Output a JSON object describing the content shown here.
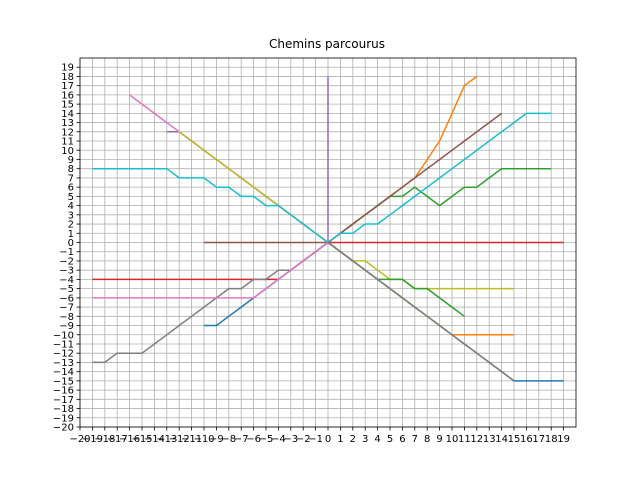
{
  "chart_data": {
    "type": "line",
    "title": "Chemins parcourus",
    "xlabel": "",
    "ylabel": "",
    "xlim": [
      -20,
      20
    ],
    "ylim": [
      -20,
      20
    ],
    "grid": true,
    "xticks": [
      -20,
      -19,
      -18,
      -17,
      -16,
      -15,
      -14,
      -13,
      -12,
      -11,
      -10,
      -9,
      -8,
      -7,
      -6,
      -5,
      -4,
      -3,
      -2,
      -1,
      0,
      1,
      2,
      3,
      4,
      5,
      6,
      7,
      8,
      9,
      10,
      11,
      12,
      13,
      14,
      15,
      16,
      17,
      18,
      19
    ],
    "xtick_labels": [
      "−20",
      "−19",
      "−18",
      "−17",
      "−16",
      "−15",
      "−14",
      "−13",
      "−12",
      "−11",
      "−10",
      "−9",
      "−8",
      "−7",
      "−6",
      "−5",
      "−4",
      "−3",
      "−2",
      "−1",
      "0",
      "1",
      "2",
      "3",
      "4",
      "5",
      "6",
      "7",
      "8",
      "9",
      "10",
      "11",
      "12",
      "13",
      "14",
      "15",
      "16",
      "17",
      "18",
      "19"
    ],
    "yticks": [
      -20,
      -19,
      -18,
      -17,
      -16,
      -15,
      -14,
      -13,
      -12,
      -11,
      -10,
      -9,
      -8,
      -7,
      -6,
      -5,
      -4,
      -3,
      -2,
      -1,
      0,
      1,
      2,
      3,
      4,
      5,
      6,
      7,
      8,
      9,
      10,
      11,
      12,
      13,
      14,
      15,
      16,
      17,
      18,
      19
    ],
    "ytick_labels": [
      "−20",
      "−19",
      "−18",
      "−17",
      "−16",
      "−15",
      "−14",
      "−13",
      "−12",
      "−11",
      "−10",
      "−9",
      "−8",
      "−7",
      "−6",
      "−5",
      "−4",
      "−3",
      "−2",
      "−1",
      "0",
      "1",
      "2",
      "3",
      "4",
      "5",
      "6",
      "7",
      "8",
      "9",
      "10",
      "11",
      "12",
      "13",
      "14",
      "15",
      "16",
      "17",
      "18",
      "19"
    ],
    "series": [
      {
        "color": "#1f77b4",
        "x": [
          0,
          1,
          2,
          3,
          4,
          5,
          6,
          7,
          8,
          9,
          10,
          11,
          12,
          13,
          14,
          15,
          16,
          17,
          18,
          19
        ],
        "y": [
          0,
          -1,
          -2,
          -3,
          -4,
          -5,
          -6,
          -7,
          -8,
          -9,
          -10,
          -11,
          -12,
          -13,
          -14,
          -15,
          -15,
          -15,
          -15,
          -15
        ]
      },
      {
        "color": "#ff7f0e",
        "x": [
          0,
          1,
          2,
          3,
          4,
          5,
          6,
          7,
          8,
          9,
          10,
          11,
          12
        ],
        "y": [
          0,
          1,
          2,
          3,
          4,
          5,
          6,
          7,
          9,
          11,
          14,
          17,
          18
        ]
      },
      {
        "color": "#2ca02c",
        "x": [
          0,
          1,
          2,
          3,
          4,
          5,
          6,
          7,
          8,
          9,
          10,
          11,
          12,
          13,
          14,
          15,
          16,
          17,
          18
        ],
        "y": [
          0,
          1,
          2,
          3,
          4,
          5,
          5,
          6,
          5,
          4,
          5,
          6,
          6,
          7,
          8,
          8,
          8,
          8,
          8
        ]
      },
      {
        "color": "#d62728",
        "x": [
          0,
          -1,
          -2,
          -3,
          -4,
          -5,
          -6,
          -7,
          -8,
          -9,
          -10,
          -11,
          -12,
          -13,
          -14,
          -15,
          -16,
          -17,
          -18,
          -19
        ],
        "y": [
          0,
          -1,
          -2,
          -3,
          -4,
          -4,
          -4,
          -4,
          -4,
          -4,
          -4,
          -4,
          -4,
          -4,
          -4,
          -4,
          -4,
          -4,
          -4,
          -4
        ]
      },
      {
        "color": "#9467bd",
        "x": [
          0,
          -1,
          -2,
          -3,
          -4,
          -5,
          -6,
          -7,
          -8,
          -9,
          -10,
          -11,
          -12,
          -13
        ],
        "y": [
          0,
          1,
          2,
          3,
          4,
          5,
          6,
          7,
          8,
          9,
          10,
          11,
          12,
          12
        ]
      },
      {
        "color": "#8c564b",
        "x": [
          0,
          1,
          2,
          3,
          4,
          5,
          6,
          7,
          8,
          9,
          10,
          11,
          12,
          13,
          14
        ],
        "y": [
          0,
          1,
          2,
          3,
          4,
          5,
          6,
          7,
          8,
          9,
          10,
          11,
          12,
          13,
          14
        ]
      },
      {
        "color": "#e377c2",
        "x": [
          0,
          -1,
          -2,
          -3,
          -4,
          -5,
          -6,
          -7,
          -8,
          -9,
          -10,
          -11,
          -12,
          -13,
          -14,
          -15,
          -16
        ],
        "y": [
          0,
          1,
          2,
          3,
          4,
          5,
          6,
          7,
          8,
          9,
          10,
          11,
          12,
          13,
          14,
          15,
          16
        ]
      },
      {
        "color": "#7f7f7f",
        "x": [
          0,
          -1,
          -2,
          -3,
          -4,
          -5,
          -6,
          -7,
          -8,
          -9,
          -10,
          -11,
          -12,
          -13,
          -14,
          -15,
          -16,
          -17,
          -18,
          -19
        ],
        "y": [
          0,
          -1,
          -2,
          -3,
          -3,
          -4,
          -4,
          -5,
          -5,
          -6,
          -7,
          -8,
          -9,
          -10,
          -11,
          -12,
          -12,
          -12,
          -13,
          -13
        ]
      },
      {
        "color": "#bcbd22",
        "x": [
          0,
          1,
          2,
          3,
          4,
          5,
          6,
          7,
          8,
          9,
          10,
          11,
          12,
          13,
          14,
          15
        ],
        "y": [
          0,
          -1,
          -2,
          -2,
          -3,
          -4,
          -4,
          -5,
          -5,
          -5,
          -5,
          -5,
          -5,
          -5,
          -5,
          -5
        ]
      },
      {
        "color": "#17becf",
        "x": [
          0,
          1,
          2,
          3,
          4,
          5,
          6,
          7,
          8,
          9,
          10,
          11,
          12,
          13,
          14,
          15,
          16,
          17,
          18
        ],
        "y": [
          0,
          1,
          1,
          2,
          2,
          3,
          4,
          5,
          6,
          7,
          8,
          9,
          10,
          11,
          12,
          13,
          14,
          14,
          14
        ]
      },
      {
        "color": "#1f77b4",
        "x": [
          0,
          -1,
          -2,
          -3,
          -4,
          -5,
          -6,
          -7,
          -8,
          -9,
          -10
        ],
        "y": [
          0,
          -1,
          -2,
          -3,
          -4,
          -5,
          -6,
          -7,
          -8,
          -9,
          -9
        ]
      },
      {
        "color": "#ff7f0e",
        "x": [
          0,
          1,
          2,
          3,
          4,
          5,
          6,
          7,
          8,
          9,
          10,
          11,
          12,
          13,
          14,
          15
        ],
        "y": [
          0,
          -1,
          -2,
          -3,
          -4,
          -5,
          -6,
          -7,
          -8,
          -9,
          -10,
          -10,
          -10,
          -10,
          -10,
          -10
        ]
      },
      {
        "color": "#2ca02c",
        "x": [
          0,
          1,
          2,
          3,
          4,
          5,
          6,
          7,
          8,
          9,
          10,
          11
        ],
        "y": [
          0,
          -1,
          -2,
          -3,
          -4,
          -4,
          -4,
          -5,
          -5,
          -6,
          -7,
          -8
        ]
      },
      {
        "color": "#d62728",
        "x": [
          0,
          1,
          2,
          3,
          4,
          5,
          6,
          7,
          8,
          9,
          10,
          11,
          12,
          13,
          14,
          15,
          16,
          17,
          18,
          19
        ],
        "y": [
          0,
          0,
          0,
          0,
          0,
          0,
          0,
          0,
          0,
          0,
          0,
          0,
          0,
          0,
          0,
          0,
          0,
          0,
          0,
          0
        ]
      },
      {
        "color": "#9467bd",
        "x": [
          0,
          0,
          0,
          0,
          0,
          0,
          0,
          0,
          0,
          0,
          0,
          0,
          0,
          0,
          0,
          0,
          0,
          0,
          0
        ],
        "y": [
          0,
          1,
          2,
          3,
          4,
          5,
          6,
          7,
          8,
          9,
          10,
          11,
          12,
          13,
          14,
          15,
          16,
          17,
          18
        ]
      },
      {
        "color": "#8c564b",
        "x": [
          0,
          -1,
          -2,
          -3,
          -4,
          -5,
          -6,
          -7,
          -8,
          -9,
          -10
        ],
        "y": [
          0,
          0,
          0,
          0,
          0,
          0,
          0,
          0,
          0,
          0,
          0
        ]
      },
      {
        "color": "#e377c2",
        "x": [
          0,
          -1,
          -2,
          -3,
          -4,
          -5,
          -6,
          -7,
          -8,
          -9,
          -10,
          -11,
          -12,
          -13,
          -14,
          -15,
          -16,
          -17,
          -18,
          -19
        ],
        "y": [
          0,
          -1,
          -2,
          -3,
          -4,
          -5,
          -6,
          -6,
          -6,
          -6,
          -6,
          -6,
          -6,
          -6,
          -6,
          -6,
          -6,
          -6,
          -6,
          -6
        ]
      },
      {
        "color": "#7f7f7f",
        "x": [
          0,
          1,
          2,
          3,
          4,
          5,
          6,
          7,
          8,
          9,
          10,
          11,
          12,
          13,
          14,
          15
        ],
        "y": [
          0,
          -1,
          -2,
          -3,
          -4,
          -5,
          -6,
          -7,
          -8,
          -9,
          -10,
          -11,
          -12,
          -13,
          -14,
          -15
        ]
      },
      {
        "color": "#bcbd22",
        "x": [
          0,
          -1,
          -2,
          -3,
          -4,
          -5,
          -6,
          -7,
          -8,
          -9,
          -10,
          -11,
          -12
        ],
        "y": [
          0,
          1,
          2,
          3,
          4,
          5,
          6,
          7,
          8,
          9,
          10,
          11,
          12
        ]
      },
      {
        "color": "#17becf",
        "x": [
          0,
          -1,
          -2,
          -3,
          -4,
          -5,
          -6,
          -7,
          -8,
          -9,
          -10,
          -11,
          -12,
          -13,
          -14,
          -15,
          -16,
          -17,
          -18,
          -19
        ],
        "y": [
          0,
          1,
          2,
          3,
          4,
          4,
          5,
          5,
          6,
          6,
          7,
          7,
          7,
          8,
          8,
          8,
          8,
          8,
          8,
          8
        ]
      }
    ]
  }
}
